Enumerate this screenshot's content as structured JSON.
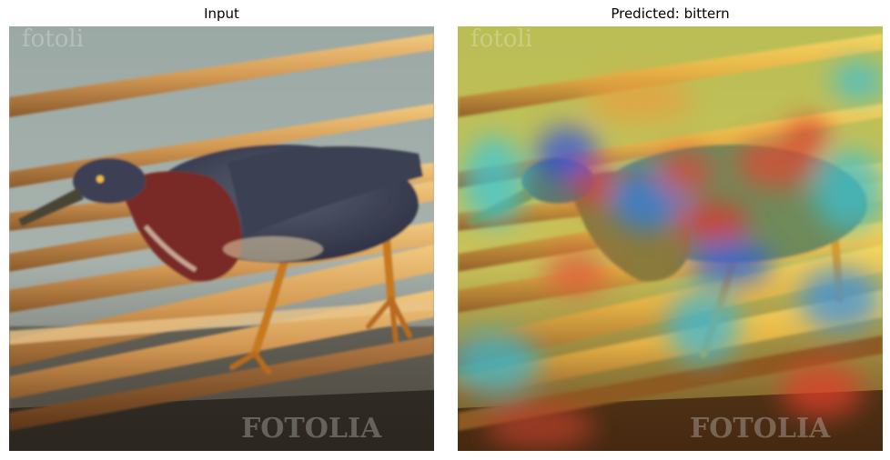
{
  "panels": {
    "left": {
      "title": "Input",
      "subject": "green heron perched on dry reeds over water"
    },
    "right": {
      "title": "Predicted: bittern",
      "overlay": "saliency heatmap (jet colormap) over input image"
    }
  },
  "watermarks": {
    "top": "fotoli",
    "bottom": "FOTOLIA"
  },
  "colors": {
    "water": "#9aa8a4",
    "reed": "#d9a55c",
    "bird_neck": "#7a2a25",
    "bird_back": "#3e4357",
    "heat_low": "#c8c23a",
    "heat_high": "#e0302a",
    "heat_cool": "#3a7adf"
  }
}
